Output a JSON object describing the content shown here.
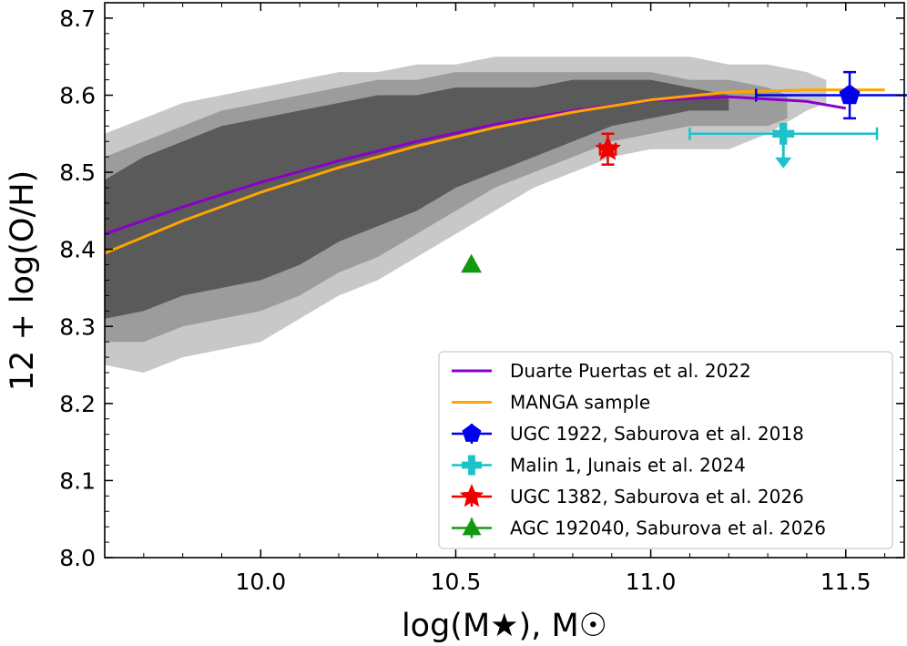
{
  "chart_data": {
    "type": "scatter",
    "xlabel": "log(M★), M☉",
    "ylabel": "12 + log(O/H)",
    "xlim": [
      9.6,
      11.65
    ],
    "ylim": [
      8.0,
      8.72
    ],
    "xticks": [
      {
        "value": 10.0,
        "label": "10.0"
      },
      {
        "value": 10.5,
        "label": "10.5"
      },
      {
        "value": 11.0,
        "label": "11.0"
      },
      {
        "value": 11.5,
        "label": "11.5"
      }
    ],
    "yticks": [
      {
        "value": 8.0,
        "label": "8.0"
      },
      {
        "value": 8.1,
        "label": "8.1"
      },
      {
        "value": 8.2,
        "label": "8.2"
      },
      {
        "value": 8.3,
        "label": "8.3"
      },
      {
        "value": 8.4,
        "label": "8.4"
      },
      {
        "value": 8.5,
        "label": "8.5"
      },
      {
        "value": 8.6,
        "label": "8.6"
      },
      {
        "value": 8.7,
        "label": "8.7"
      }
    ],
    "grid": false,
    "legend_position": "lower-right",
    "density_contours": [
      {
        "level": "outer",
        "color": "#c8c8c8",
        "upper": [
          [
            9.6,
            8.55
          ],
          [
            9.7,
            8.57
          ],
          [
            9.8,
            8.59
          ],
          [
            9.9,
            8.6
          ],
          [
            10.0,
            8.61
          ],
          [
            10.1,
            8.62
          ],
          [
            10.2,
            8.63
          ],
          [
            10.3,
            8.63
          ],
          [
            10.4,
            8.64
          ],
          [
            10.5,
            8.64
          ],
          [
            10.6,
            8.65
          ],
          [
            10.7,
            8.65
          ],
          [
            10.8,
            8.65
          ],
          [
            10.9,
            8.65
          ],
          [
            11.0,
            8.65
          ],
          [
            11.1,
            8.65
          ],
          [
            11.2,
            8.64
          ],
          [
            11.3,
            8.64
          ],
          [
            11.4,
            8.63
          ],
          [
            11.45,
            8.62
          ]
        ],
        "lower": [
          [
            11.45,
            8.59
          ],
          [
            11.4,
            8.58
          ],
          [
            11.3,
            8.55
          ],
          [
            11.2,
            8.53
          ],
          [
            11.1,
            8.53
          ],
          [
            11.0,
            8.53
          ],
          [
            10.9,
            8.52
          ],
          [
            10.8,
            8.5
          ],
          [
            10.7,
            8.48
          ],
          [
            10.6,
            8.45
          ],
          [
            10.5,
            8.42
          ],
          [
            10.4,
            8.39
          ],
          [
            10.3,
            8.36
          ],
          [
            10.2,
            8.34
          ],
          [
            10.1,
            8.31
          ],
          [
            10.0,
            8.28
          ],
          [
            9.9,
            8.27
          ],
          [
            9.8,
            8.26
          ],
          [
            9.7,
            8.24
          ],
          [
            9.6,
            8.25
          ]
        ]
      },
      {
        "level": "middle",
        "color": "#9c9c9c",
        "upper": [
          [
            9.6,
            8.52
          ],
          [
            9.7,
            8.54
          ],
          [
            9.8,
            8.56
          ],
          [
            9.9,
            8.58
          ],
          [
            10.0,
            8.59
          ],
          [
            10.1,
            8.6
          ],
          [
            10.2,
            8.61
          ],
          [
            10.3,
            8.62
          ],
          [
            10.4,
            8.62
          ],
          [
            10.5,
            8.63
          ],
          [
            10.6,
            8.63
          ],
          [
            10.7,
            8.63
          ],
          [
            10.8,
            8.63
          ],
          [
            10.9,
            8.63
          ],
          [
            11.0,
            8.63
          ],
          [
            11.1,
            8.62
          ],
          [
            11.2,
            8.62
          ],
          [
            11.3,
            8.61
          ],
          [
            11.35,
            8.6
          ]
        ],
        "lower": [
          [
            11.35,
            8.57
          ],
          [
            11.3,
            8.56
          ],
          [
            11.2,
            8.56
          ],
          [
            11.1,
            8.56
          ],
          [
            11.0,
            8.55
          ],
          [
            10.9,
            8.54
          ],
          [
            10.8,
            8.52
          ],
          [
            10.7,
            8.5
          ],
          [
            10.6,
            8.48
          ],
          [
            10.5,
            8.45
          ],
          [
            10.4,
            8.42
          ],
          [
            10.3,
            8.39
          ],
          [
            10.2,
            8.37
          ],
          [
            10.1,
            8.34
          ],
          [
            10.0,
            8.32
          ],
          [
            9.9,
            8.31
          ],
          [
            9.8,
            8.3
          ],
          [
            9.7,
            8.28
          ],
          [
            9.6,
            8.28
          ]
        ]
      },
      {
        "level": "inner",
        "color": "#5a5a5a",
        "upper": [
          [
            9.6,
            8.49
          ],
          [
            9.7,
            8.52
          ],
          [
            9.8,
            8.54
          ],
          [
            9.9,
            8.56
          ],
          [
            10.0,
            8.57
          ],
          [
            10.1,
            8.58
          ],
          [
            10.2,
            8.59
          ],
          [
            10.3,
            8.6
          ],
          [
            10.4,
            8.6
          ],
          [
            10.5,
            8.61
          ],
          [
            10.6,
            8.61
          ],
          [
            10.7,
            8.61
          ],
          [
            10.8,
            8.62
          ],
          [
            10.9,
            8.62
          ],
          [
            11.0,
            8.62
          ],
          [
            11.1,
            8.61
          ],
          [
            11.2,
            8.6
          ]
        ],
        "lower": [
          [
            11.2,
            8.58
          ],
          [
            11.1,
            8.58
          ],
          [
            11.0,
            8.57
          ],
          [
            10.9,
            8.56
          ],
          [
            10.8,
            8.54
          ],
          [
            10.7,
            8.52
          ],
          [
            10.6,
            8.5
          ],
          [
            10.5,
            8.48
          ],
          [
            10.4,
            8.45
          ],
          [
            10.3,
            8.43
          ],
          [
            10.2,
            8.41
          ],
          [
            10.1,
            8.38
          ],
          [
            10.0,
            8.36
          ],
          [
            9.9,
            8.35
          ],
          [
            9.8,
            8.34
          ],
          [
            9.7,
            8.32
          ],
          [
            9.6,
            8.31
          ]
        ]
      }
    ],
    "series": [
      {
        "name": "Duarte Puertas et al. 2022",
        "kind": "line",
        "color": "#8b00c9",
        "x": [
          9.6,
          9.8,
          10.0,
          10.2,
          10.4,
          10.6,
          10.8,
          11.0,
          11.2,
          11.4,
          11.5
        ],
        "y": [
          8.42,
          8.455,
          8.487,
          8.515,
          8.54,
          8.562,
          8.58,
          8.593,
          8.598,
          8.592,
          8.583
        ]
      },
      {
        "name": "MANGA sample",
        "kind": "line",
        "color": "#ffa500",
        "x": [
          9.6,
          9.8,
          10.0,
          10.2,
          10.4,
          10.6,
          10.8,
          11.0,
          11.2,
          11.4,
          11.6
        ],
        "y": [
          8.395,
          8.437,
          8.474,
          8.506,
          8.534,
          8.558,
          8.578,
          8.594,
          8.604,
          8.607,
          8.607
        ]
      },
      {
        "name": "UGC 1922, Saburova et al. 2018",
        "kind": "point",
        "marker": "pentagon",
        "color": "#0000ee",
        "x": 11.51,
        "y": 8.6,
        "xerr": [
          0.24,
          0.2
        ],
        "yerr": [
          0.03,
          0.03
        ]
      },
      {
        "name": "Malin 1, Junais et al. 2024",
        "kind": "point",
        "marker": "plus",
        "color": "#1cc1c9",
        "x": 11.34,
        "y": 8.55,
        "xerr": [
          0.24,
          0.24
        ],
        "yerr": [
          0.0,
          0.0
        ],
        "upper_limit": true
      },
      {
        "name": "UGC 1382, Saburova et al. 2026",
        "kind": "point",
        "marker": "star",
        "color": "#ee0000",
        "x": 10.89,
        "y": 8.53,
        "xerr": [
          0.02,
          0.02
        ],
        "yerr": [
          0.02,
          0.02
        ]
      },
      {
        "name": "AGC 192040, Saburova et al. 2026",
        "kind": "point",
        "marker": "triangle",
        "color": "#119a11",
        "x": 10.54,
        "y": 8.38,
        "xerr": [
          0,
          0
        ],
        "yerr": [
          0,
          0
        ]
      }
    ]
  }
}
